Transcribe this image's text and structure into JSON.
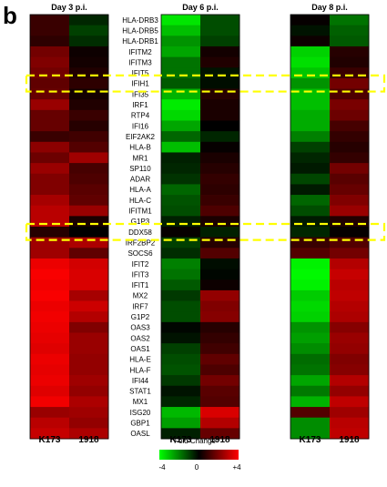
{
  "panel_letter": "b",
  "chart_data": {
    "type": "heatmap",
    "panels": [
      "Day 3 p.i.",
      "Day 6 p.i.",
      "Day 8 p.i."
    ],
    "columns": [
      "K173",
      "1918"
    ],
    "genes": [
      "HLA-DRB3",
      "HLA-DRB5",
      "HLA-DRB1",
      "IFITM2",
      "IFITM3",
      "IFIT5",
      "IFIH1",
      "IFI35",
      "IRF1",
      "RTP4",
      "IFI16",
      "EIF2AK2",
      "HLA-B",
      "MR1",
      "SP110",
      "ADAR",
      "HLA-A",
      "HLA-C",
      "IFITM1",
      "G1P3",
      "DDX58",
      "IRF2BP2",
      "SOCS6",
      "IFIT2",
      "IFIT3",
      "IFIT1",
      "MX2",
      "IRF7",
      "G1P2",
      "OAS3",
      "OAS2",
      "OAS1",
      "HLA-E",
      "HLA-F",
      "IFI44",
      "STAT1",
      "MX1",
      "ISG20",
      "GBP1",
      "OASL"
    ],
    "values": {
      "day3": [
        [
          0.9,
          -0.6
        ],
        [
          0.9,
          -1.0
        ],
        [
          0.7,
          -0.7
        ],
        [
          1.8,
          0.2
        ],
        [
          2.0,
          0.3
        ],
        [
          1.8,
          0.5
        ],
        [
          1.5,
          0.7
        ],
        [
          1.6,
          0.3
        ],
        [
          2.4,
          0.5
        ],
        [
          1.6,
          0.9
        ],
        [
          1.6,
          0.6
        ],
        [
          0.9,
          1.0
        ],
        [
          2.2,
          1.3
        ],
        [
          1.7,
          2.5
        ],
        [
          2.4,
          1.1
        ],
        [
          2.0,
          1.2
        ],
        [
          2.0,
          1.4
        ],
        [
          2.6,
          1.5
        ],
        [
          2.9,
          2.4
        ],
        [
          2.9,
          0.4
        ],
        [
          0.6,
          0.0
        ],
        [
          2.5,
          2.7
        ],
        [
          2.5,
          1.5
        ],
        [
          3.7,
          3.3
        ],
        [
          3.9,
          3.4
        ],
        [
          3.8,
          3.4
        ],
        [
          3.9,
          2.6
        ],
        [
          3.7,
          3.2
        ],
        [
          3.8,
          2.8
        ],
        [
          3.7,
          2.0
        ],
        [
          3.6,
          2.4
        ],
        [
          3.5,
          2.4
        ],
        [
          3.7,
          2.3
        ],
        [
          3.6,
          2.3
        ],
        [
          3.7,
          2.5
        ],
        [
          3.5,
          2.3
        ],
        [
          3.8,
          2.7
        ],
        [
          2.4,
          2.5
        ],
        [
          2.9,
          2.3
        ],
        [
          3.1,
          2.7
        ]
      ],
      "day6": [
        [
          -3.6,
          -1.2
        ],
        [
          -3.0,
          -1.2
        ],
        [
          -2.3,
          -1.0
        ],
        [
          -2.6,
          0.3
        ],
        [
          -1.8,
          0.5
        ],
        [
          -1.8,
          -0.3
        ],
        [
          -1.4,
          -0.2
        ],
        [
          -2.8,
          0.6
        ],
        [
          -3.7,
          0.4
        ],
        [
          -3.4,
          0.4
        ],
        [
          -2.6,
          0.0
        ],
        [
          -1.6,
          -0.6
        ],
        [
          -3.0,
          0.1
        ],
        [
          -0.5,
          0.4
        ],
        [
          -0.6,
          0.6
        ],
        [
          -0.8,
          0.8
        ],
        [
          -1.6,
          0.7
        ],
        [
          -1.3,
          0.9
        ],
        [
          -1.2,
          1.2
        ],
        [
          -0.5,
          0.4
        ],
        [
          0.1,
          -0.5
        ],
        [
          -1.0,
          0.6
        ],
        [
          -0.7,
          1.3
        ],
        [
          -2.0,
          -0.2
        ],
        [
          -1.8,
          -0.1
        ],
        [
          -1.4,
          0.2
        ],
        [
          -0.9,
          2.3
        ],
        [
          -1.2,
          2.0
        ],
        [
          -1.2,
          2.1
        ],
        [
          -0.1,
          0.6
        ],
        [
          -0.3,
          0.8
        ],
        [
          -1.0,
          1.0
        ],
        [
          -1.2,
          1.5
        ],
        [
          -1.3,
          1.2
        ],
        [
          -0.9,
          1.8
        ],
        [
          -0.3,
          1.4
        ],
        [
          -0.6,
          1.3
        ],
        [
          -2.9,
          3.4
        ],
        [
          -2.5,
          2.8
        ],
        [
          -0.5,
          1.6
        ]
      ],
      "day8": [
        [
          0.1,
          -1.8
        ],
        [
          -0.3,
          -1.5
        ],
        [
          0.2,
          -1.4
        ],
        [
          -3.3,
          0.6
        ],
        [
          -3.5,
          0.5
        ],
        [
          -3.1,
          0.9
        ],
        [
          -2.3,
          1.8
        ],
        [
          -3.0,
          1.2
        ],
        [
          -3.0,
          1.9
        ],
        [
          -2.7,
          1.7
        ],
        [
          -2.7,
          1.1
        ],
        [
          -2.0,
          0.8
        ],
        [
          -1.0,
          0.6
        ],
        [
          -0.6,
          0.8
        ],
        [
          -0.4,
          1.8
        ],
        [
          -1.1,
          1.4
        ],
        [
          -0.4,
          1.6
        ],
        [
          -1.6,
          2.0
        ],
        [
          -1.2,
          2.4
        ],
        [
          -0.4,
          0.5
        ],
        [
          -0.6,
          0.1
        ],
        [
          0.9,
          1.3
        ],
        [
          1.3,
          1.8
        ],
        [
          -3.8,
          2.8
        ],
        [
          -3.9,
          3.1
        ],
        [
          -3.8,
          2.9
        ],
        [
          -3.2,
          3.0
        ],
        [
          -3.4,
          2.8
        ],
        [
          -3.3,
          2.7
        ],
        [
          -2.3,
          2.1
        ],
        [
          -2.5,
          2.4
        ],
        [
          -2.2,
          2.3
        ],
        [
          -1.7,
          2.0
        ],
        [
          -1.8,
          2.1
        ],
        [
          -2.6,
          2.8
        ],
        [
          -1.9,
          2.3
        ],
        [
          -2.8,
          3.0
        ],
        [
          1.3,
          2.5
        ],
        [
          -2.2,
          2.9
        ],
        [
          -2.2,
          3.0
        ]
      ]
    },
    "highlighted_genes": [
      "IFIH1",
      "DDX58"
    ],
    "legend": {
      "title": "Fold Change",
      "min_label": "-4",
      "mid_label": "0",
      "max_label": "+4",
      "range": [
        -4,
        4
      ],
      "color_low": "#00ff00",
      "color_mid": "#000000",
      "color_high": "#ff0000"
    },
    "highlight_color": "#ffff00"
  }
}
